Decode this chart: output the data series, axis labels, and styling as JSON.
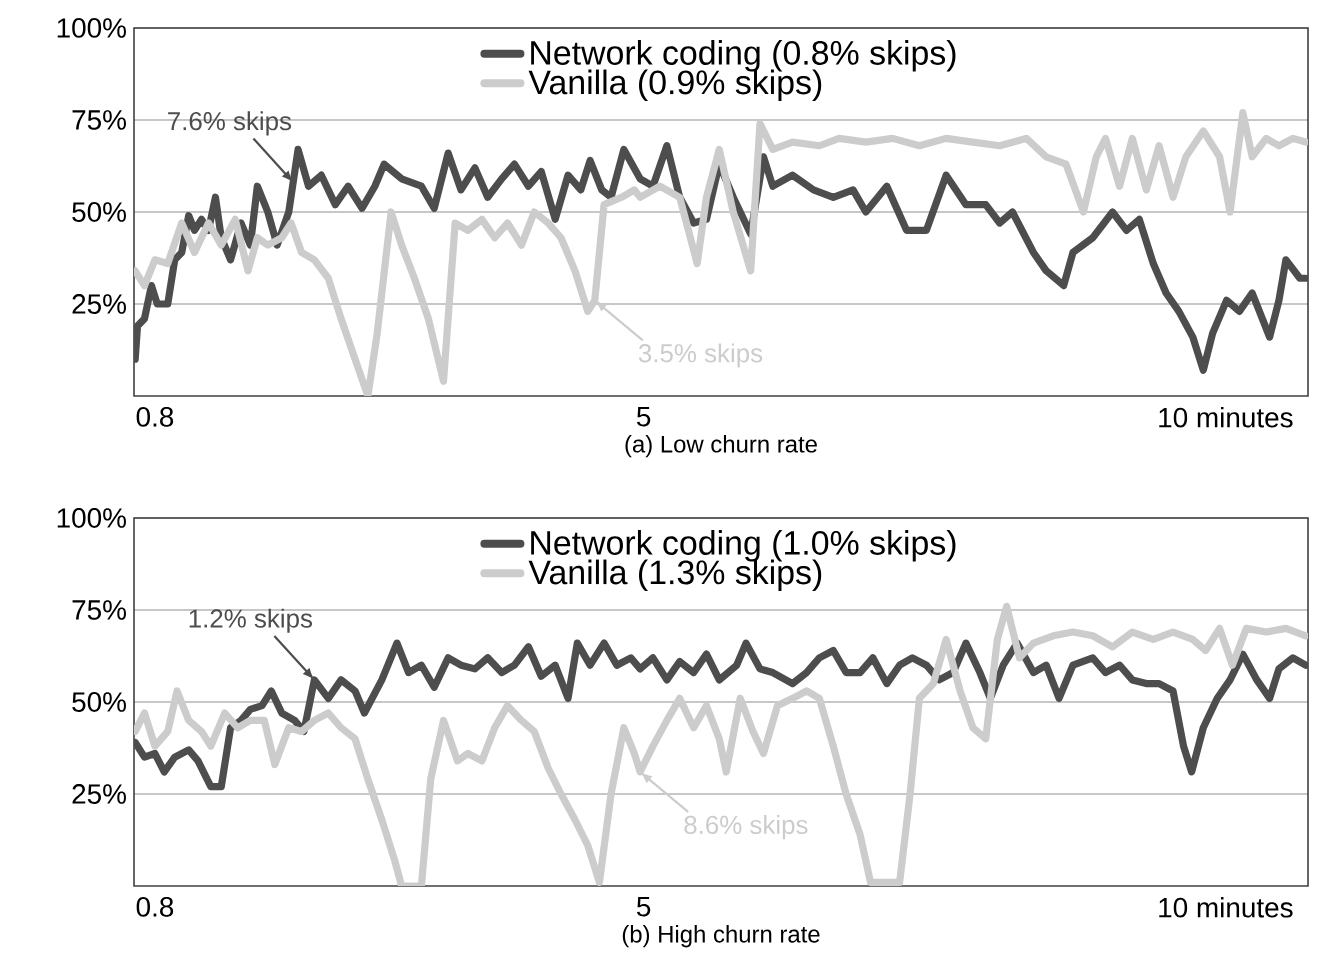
{
  "chart_data": [
    {
      "type": "line",
      "title": "(a) Low churn rate",
      "xlim": [
        0.62,
        10.71
      ],
      "xticks": [
        0.8,
        5,
        {
          "value": 10,
          "label": "10 minutes"
        }
      ],
      "ylim": [
        0,
        100
      ],
      "yticks": [
        {
          "value": 25,
          "label": "25%"
        },
        {
          "value": 50,
          "label": "50%"
        },
        {
          "value": 75,
          "label": "75%"
        },
        {
          "value": 100,
          "label": "100%"
        }
      ],
      "grid": "y",
      "legend": "top",
      "series": [
        {
          "name": "Network coding (0.8% skips)",
          "color": "#4d4d4d",
          "x": [
            0.63,
            0.65,
            0.71,
            0.77,
            0.82,
            0.91,
            0.97,
            1.03,
            1.09,
            1.14,
            1.2,
            1.26,
            1.32,
            1.37,
            1.45,
            1.54,
            1.62,
            1.68,
            1.77,
            1.85,
            1.95,
            2.03,
            2.12,
            2.23,
            2.35,
            2.46,
            2.58,
            2.69,
            2.77,
            2.92,
            3.09,
            3.2,
            3.32,
            3.43,
            3.55,
            3.66,
            3.78,
            3.89,
            4.01,
            4.12,
            4.24,
            4.35,
            4.46,
            4.54,
            4.64,
            4.72,
            4.83,
            4.97,
            5.08,
            5.2,
            5.31,
            5.43,
            5.54,
            5.65,
            5.77,
            5.92,
            6.03,
            6.11,
            6.28,
            6.46,
            6.63,
            6.8,
            6.91,
            7.09,
            7.26,
            7.43,
            7.6,
            7.77,
            7.94,
            8.06,
            8.17,
            8.35,
            8.46,
            8.61,
            8.69,
            8.86,
            9.03,
            9.15,
            9.26,
            9.38,
            9.49,
            9.6,
            9.72,
            9.81,
            9.89,
            10.01,
            10.12,
            10.23,
            10.38,
            10.46,
            10.52,
            10.64,
            10.69
          ],
          "values": [
            10,
            19,
            21,
            30,
            25,
            25,
            37,
            39,
            49,
            45,
            48,
            45,
            54,
            43,
            37,
            47,
            41,
            57,
            50,
            41,
            50,
            67,
            57,
            60,
            52,
            57,
            51,
            57,
            63,
            59,
            57,
            51,
            66,
            56,
            62,
            54,
            59,
            63,
            57,
            61,
            48,
            60,
            56,
            64,
            56,
            54,
            67,
            59,
            57,
            68,
            54,
            47,
            48,
            63,
            54,
            44,
            65,
            57,
            60,
            56,
            54,
            56,
            50,
            57,
            45,
            45,
            60,
            52,
            52,
            47,
            50,
            39,
            34,
            30,
            39,
            43,
            50,
            45,
            48,
            36,
            28,
            23,
            16,
            7,
            17,
            26,
            23,
            28,
            16,
            26,
            37,
            32,
            32
          ]
        },
        {
          "name": "Vanilla (0.9% skips)",
          "color": "#cccccc",
          "x": [
            0.63,
            0.71,
            0.8,
            0.91,
            1.03,
            1.14,
            1.26,
            1.37,
            1.49,
            1.6,
            1.68,
            1.77,
            1.89,
            1.97,
            2.06,
            2.17,
            2.29,
            2.4,
            2.52,
            2.63,
            2.71,
            2.83,
            2.92,
            3.03,
            3.15,
            3.28,
            3.38,
            3.49,
            3.61,
            3.72,
            3.83,
            3.95,
            4.06,
            4.18,
            4.29,
            4.41,
            4.52,
            4.58,
            4.66,
            4.81,
            4.92,
            4.97,
            5.14,
            5.31,
            5.46,
            5.54,
            5.65,
            5.77,
            5.92,
            6.0,
            6.11,
            6.28,
            6.51,
            6.68,
            6.91,
            7.14,
            7.37,
            7.6,
            7.83,
            8.06,
            8.29,
            8.46,
            8.63,
            8.78,
            8.89,
            8.97,
            9.09,
            9.2,
            9.32,
            9.43,
            9.55,
            9.66,
            9.81,
            9.95,
            10.04,
            10.15,
            10.23,
            10.35,
            10.46,
            10.58,
            10.69
          ],
          "values": [
            34,
            30,
            37,
            36,
            47,
            39,
            47,
            41,
            48,
            34,
            43,
            41,
            43,
            47,
            39,
            37,
            32,
            21,
            10,
            0,
            17,
            50,
            41,
            32,
            21,
            4,
            47,
            45,
            48,
            43,
            47,
            41,
            50,
            47,
            43,
            34,
            23,
            26,
            52,
            54,
            56,
            54,
            57,
            54,
            36,
            54,
            67,
            50,
            34,
            74,
            67,
            69,
            68,
            70,
            69,
            70,
            68,
            70,
            69,
            68,
            70,
            65,
            63,
            50,
            65,
            70,
            57,
            70,
            56,
            68,
            54,
            65,
            72,
            65,
            50,
            77,
            65,
            70,
            68,
            70,
            69
          ]
        }
      ],
      "annotations": [
        {
          "text": "7.6% skips",
          "x": 1.99,
          "y": 58
        },
        {
          "text": "3.5% skips",
          "x": 4.58,
          "y": 26
        }
      ]
    },
    {
      "type": "line",
      "title": "(b) High churn rate",
      "xlim": [
        0.62,
        10.71
      ],
      "xticks": [
        0.8,
        5,
        {
          "value": 10,
          "label": "10 minutes"
        }
      ],
      "ylim": [
        0,
        100
      ],
      "yticks": [
        {
          "value": 25,
          "label": "25%"
        },
        {
          "value": 50,
          "label": "50%"
        },
        {
          "value": 75,
          "label": "75%"
        },
        {
          "value": 100,
          "label": "100%"
        }
      ],
      "grid": "y",
      "legend": "top",
      "series": [
        {
          "name": "Network coding (1.0% skips)",
          "color": "#4d4d4d",
          "x": [
            0.63,
            0.71,
            0.8,
            0.88,
            0.97,
            1.09,
            1.17,
            1.28,
            1.37,
            1.45,
            1.54,
            1.62,
            1.72,
            1.8,
            1.89,
            2.0,
            2.08,
            2.17,
            2.29,
            2.4,
            2.52,
            2.6,
            2.75,
            2.88,
            2.98,
            3.09,
            3.2,
            3.32,
            3.43,
            3.55,
            3.66,
            3.78,
            3.89,
            4.01,
            4.12,
            4.24,
            4.35,
            4.43,
            4.54,
            4.66,
            4.77,
            4.89,
            4.97,
            5.08,
            5.2,
            5.31,
            5.43,
            5.54,
            5.65,
            5.8,
            5.88,
            6.0,
            6.11,
            6.28,
            6.4,
            6.51,
            6.63,
            6.74,
            6.86,
            6.97,
            7.09,
            7.2,
            7.31,
            7.43,
            7.54,
            7.66,
            7.77,
            7.89,
            7.98,
            8.09,
            8.21,
            8.35,
            8.46,
            8.57,
            8.69,
            8.86,
            8.97,
            9.09,
            9.2,
            9.32,
            9.43,
            9.55,
            9.64,
            9.71,
            9.81,
            9.93,
            10.04,
            10.15,
            10.27,
            10.38,
            10.46,
            10.58,
            10.69
          ],
          "values": [
            39,
            35,
            36,
            31,
            35,
            37,
            34,
            27,
            27,
            43,
            45,
            48,
            49,
            53,
            47,
            45,
            42,
            56,
            51,
            56,
            53,
            47,
            56,
            66,
            58,
            60,
            54,
            62,
            60,
            59,
            62,
            58,
            60,
            65,
            57,
            60,
            51,
            66,
            60,
            66,
            60,
            62,
            59,
            62,
            56,
            61,
            58,
            63,
            56,
            60,
            66,
            59,
            58,
            55,
            58,
            62,
            64,
            58,
            58,
            62,
            55,
            60,
            62,
            60,
            56,
            58,
            66,
            58,
            51,
            60,
            66,
            58,
            60,
            51,
            60,
            62,
            58,
            60,
            56,
            55,
            55,
            53,
            38,
            31,
            43,
            51,
            56,
            63,
            56,
            51,
            59,
            62,
            60
          ]
        },
        {
          "name": "Vanilla (1.3% skips)",
          "color": "#cccccc",
          "x": [
            0.63,
            0.71,
            0.8,
            0.91,
            0.99,
            1.09,
            1.2,
            1.28,
            1.4,
            1.51,
            1.62,
            1.74,
            1.83,
            1.95,
            2.06,
            2.17,
            2.29,
            2.4,
            2.52,
            2.63,
            2.75,
            2.86,
            2.92,
            3.09,
            3.17,
            3.28,
            3.4,
            3.49,
            3.61,
            3.72,
            3.83,
            3.95,
            4.06,
            4.18,
            4.29,
            4.41,
            4.52,
            4.62,
            4.72,
            4.83,
            4.92,
            4.97,
            5.08,
            5.2,
            5.31,
            5.43,
            5.54,
            5.65,
            5.71,
            5.83,
            5.94,
            6.03,
            6.15,
            6.28,
            6.4,
            6.51,
            6.63,
            6.74,
            6.86,
            6.95,
            7.2,
            7.29,
            7.37,
            7.49,
            7.6,
            7.72,
            7.83,
            7.94,
            8.04,
            8.12,
            8.23,
            8.35,
            8.52,
            8.69,
            8.86,
            9.03,
            9.2,
            9.38,
            9.55,
            9.72,
            9.83,
            9.95,
            10.06,
            10.18,
            10.35,
            10.52,
            10.69
          ],
          "values": [
            42,
            47,
            38,
            42,
            53,
            45,
            42,
            38,
            47,
            43,
            45,
            45,
            33,
            43,
            42,
            45,
            47,
            43,
            40,
            29,
            18,
            7,
            0,
            0,
            29,
            45,
            34,
            36,
            34,
            43,
            49,
            45,
            42,
            32,
            25,
            18,
            11,
            1,
            25,
            43,
            36,
            31,
            38,
            45,
            51,
            43,
            49,
            40,
            31,
            51,
            42,
            36,
            49,
            51,
            53,
            51,
            38,
            25,
            14,
            1,
            1,
            25,
            51,
            55,
            67,
            53,
            43,
            40,
            67,
            76,
            62,
            66,
            68,
            69,
            68,
            65,
            69,
            67,
            69,
            67,
            64,
            70,
            60,
            70,
            69,
            70,
            68
          ]
        }
      ],
      "annotations": [
        {
          "text": "1.2% skips",
          "x": 2.17,
          "y": 56
        },
        {
          "text": "8.6% skips",
          "x": 4.97,
          "y": 31
        }
      ]
    }
  ]
}
